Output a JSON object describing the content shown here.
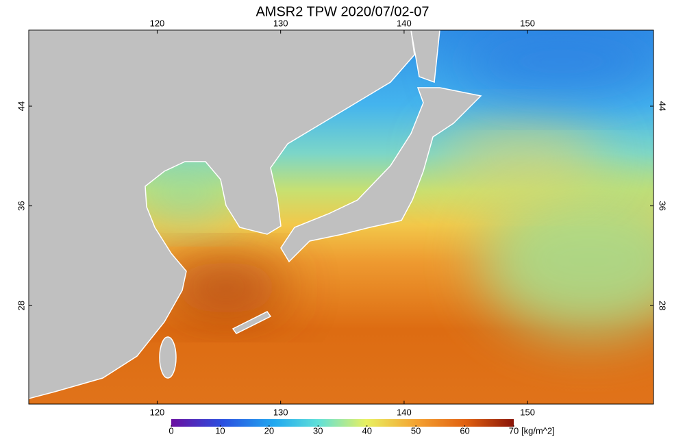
{
  "title": "AMSR2 TPW 2020/07/02-07",
  "lon_ticks": [
    120,
    130,
    140,
    150
  ],
  "lat_ticks": [
    44,
    36,
    28
  ],
  "lon_range": [
    109.6,
    160.2
  ],
  "lat_range": [
    50.1,
    20.1
  ],
  "colorbar": {
    "ticks": [
      0,
      10,
      20,
      30,
      40,
      50,
      60,
      70
    ],
    "unit": "[kg/m^2]"
  }
}
